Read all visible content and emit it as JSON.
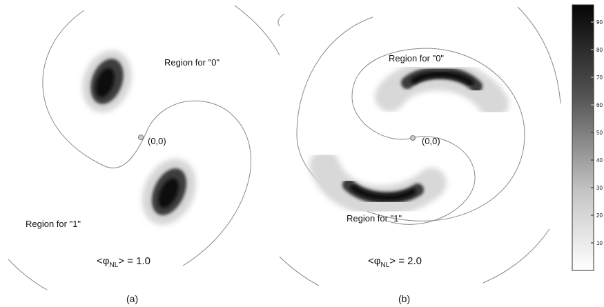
{
  "panel_a": {
    "region0": "Region for \"0\"",
    "region1": "Region for \"1\"",
    "origin": "(0,0)",
    "phi_open": "<φ",
    "phi_sub": "NL",
    "phi_close": "> = 1.0",
    "caption": "(a)"
  },
  "panel_b": {
    "region0": "Region for \"0\"",
    "region1": "Region for \"1\"",
    "origin": "(0,0)",
    "phi_open": "<φ",
    "phi_sub": "NL",
    "phi_close": "> = 2.0",
    "caption": "(b)"
  },
  "colorbar": {
    "ticks": [
      "90",
      "80",
      "70",
      "60",
      "50",
      "40",
      "30",
      "20",
      "10"
    ],
    "color_min": "#ffffff",
    "color_max": "#000000"
  },
  "colors": {
    "boundary": "#888888",
    "origin_marker": "#aaaaaa"
  }
}
